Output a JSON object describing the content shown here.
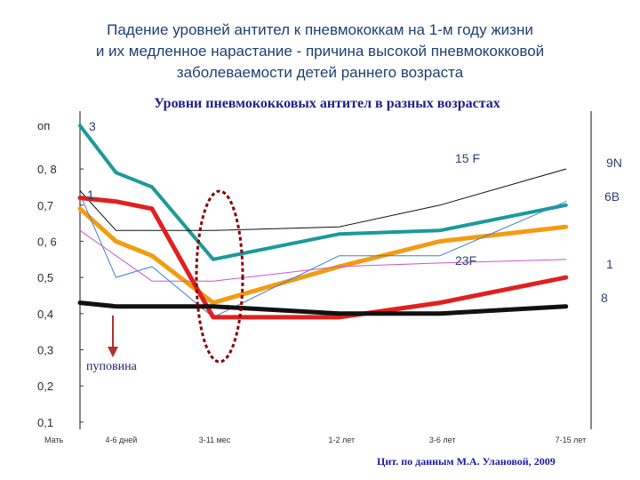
{
  "header": {
    "title_lines": [
      "Падение уровней антител к пневмококкам на 1-м году жизни",
      "и их медленное нарастание - причина высокой пневмококковой",
      "заболеваемости детей раннего возраста"
    ]
  },
  "chart_data": {
    "type": "line",
    "title": "Уровни пневмококковых антител в разных возрастах",
    "ylabel": "оп",
    "ylim": [
      0.08,
      0.96
    ],
    "yticks": [
      "0, 8",
      "0,7",
      "0, 6",
      "0,5",
      "0,4",
      "0,3",
      "0,2",
      "0,1"
    ],
    "ytick_values": [
      0.8,
      0.7,
      0.6,
      0.5,
      0.4,
      0.3,
      0.2,
      0.1
    ],
    "x_labels": [
      "Мать",
      "4-6 дней",
      "3-11 мес",
      "1-2 лет",
      "3-6 лет",
      "7-15 лет"
    ],
    "x_label_positions": [
      0,
      1,
      3.6,
      7.2,
      10,
      13.5
    ],
    "xlim": [
      0,
      14.2
    ],
    "grid": false,
    "series": [
      {
        "name": "3",
        "color": "#1b9a9a",
        "width": 4,
        "x": [
          0,
          1,
          2,
          3.7,
          7.2,
          10,
          13.5
        ],
        "y": [
          0.92,
          0.79,
          0.75,
          0.55,
          0.62,
          0.63,
          0.7
        ]
      },
      {
        "name": "9N",
        "color": "#111111",
        "width": 1,
        "x": [
          0,
          1,
          3.7,
          7.2,
          10,
          13.5
        ],
        "y": [
          0.74,
          0.63,
          0.63,
          0.64,
          0.7,
          0.8
        ]
      },
      {
        "name": "6B",
        "color": "#f39c12",
        "width": 5,
        "x": [
          0,
          1,
          2,
          3.7,
          7.2,
          10,
          13.5
        ],
        "y": [
          0.69,
          0.6,
          0.56,
          0.43,
          0.53,
          0.6,
          0.64
        ]
      },
      {
        "name": "15 F",
        "color": "#3a7fd5",
        "width": 1,
        "x": [
          0,
          1,
          2,
          3.7,
          7.2,
          10,
          13.5
        ],
        "y": [
          0.73,
          0.5,
          0.53,
          0.39,
          0.56,
          0.56,
          0.71
        ]
      },
      {
        "name": "23F",
        "color": "#cc55cc",
        "width": 1,
        "x": [
          0,
          1,
          2,
          3.7,
          7.2,
          10,
          13.5
        ],
        "y": [
          0.63,
          0.56,
          0.49,
          0.49,
          0.53,
          0.54,
          0.55
        ]
      },
      {
        "name": "1",
        "color": "#e02020",
        "width": 5,
        "x": [
          0,
          1,
          2,
          3.7,
          7.2,
          10,
          13.5
        ],
        "y": [
          0.72,
          0.71,
          0.69,
          0.39,
          0.39,
          0.43,
          0.5
        ]
      },
      {
        "name": "8",
        "color": "#111111",
        "width": 5,
        "x": [
          0,
          1,
          3.7,
          7.2,
          10,
          13.5
        ],
        "y": [
          0.43,
          0.42,
          0.42,
          0.4,
          0.4,
          0.42
        ]
      }
    ],
    "annotations": {
      "label_3": "3",
      "label_9N": "9N",
      "label_15F": "15 F",
      "label_6B": "6B",
      "label_23F": "23F",
      "label_1": "1",
      "label_8": "8",
      "label_1_left": "1",
      "umbilical": "пуповина"
    }
  },
  "source_note": "Цит. по данным М.А. Улановой, 2009",
  "colors": {
    "title": "#1e3f73",
    "axis": "#3a3a3a",
    "ellipse": "#8b0000",
    "arrow": "#b03030"
  }
}
